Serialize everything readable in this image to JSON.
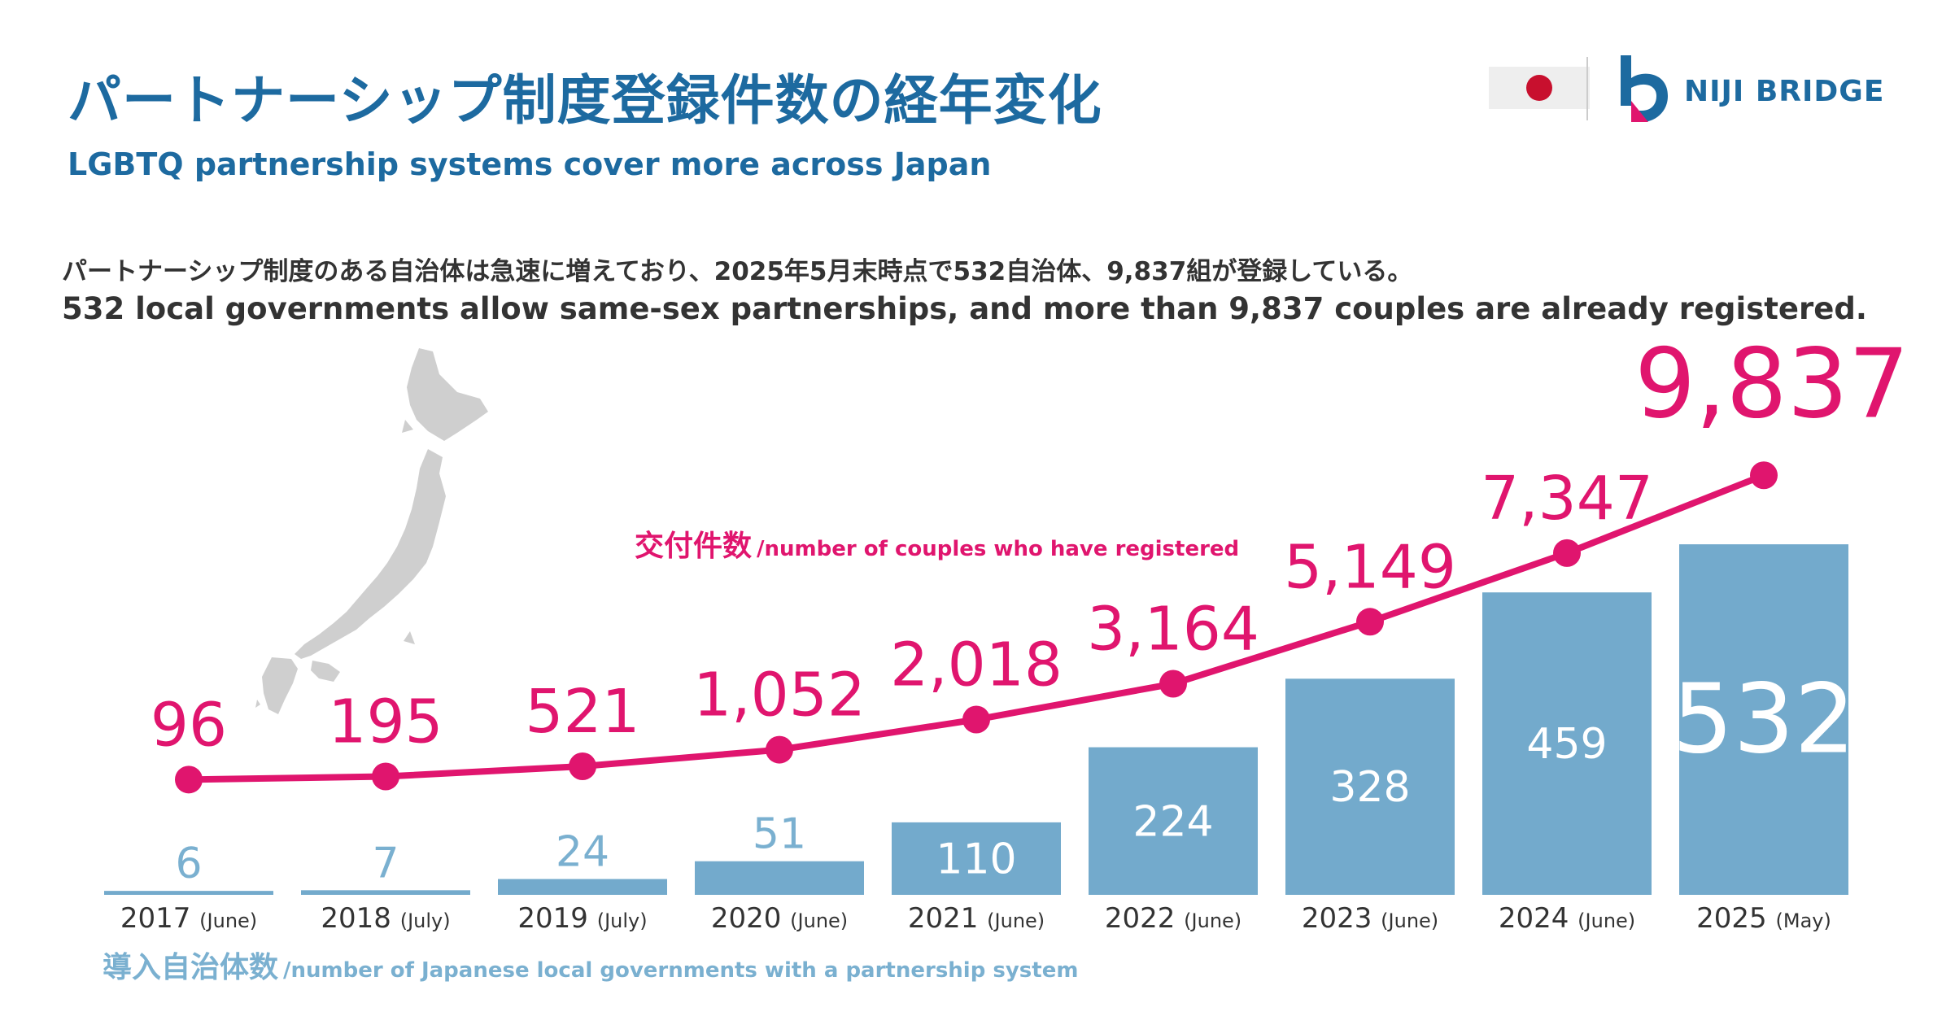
{
  "header": {
    "title_ja": "パートナーシップ制度登録件数の経年変化",
    "title_en": "LGBTQ partnership systems cover more across Japan",
    "lead_ja": "パートナーシップ制度のある自治体は急速に増えており、2025年5月末時点で532自治体、9,837組が登録している。",
    "lead_en": "532 local governments allow same-sex partnerships, and more than 9,837 couples are already registered."
  },
  "brand": {
    "logo_text": "NIJI BRIDGE"
  },
  "legend": {
    "couples_ja": "交付件数",
    "couples_en": "/number of couples who have registered",
    "govs_ja": "導入自治体数",
    "govs_en": "/number of Japanese local governments with a partnership system"
  },
  "colors": {
    "pink": "#e0156e",
    "bar": "#73aacc",
    "bar_light_text": "#7ab0d0",
    "title_blue": "#1d6aa0"
  },
  "chart_data": {
    "type": "bar",
    "categories": [
      {
        "year": "2017",
        "period": "(June)"
      },
      {
        "year": "2018",
        "period": "(July)"
      },
      {
        "year": "2019",
        "period": "(July)"
      },
      {
        "year": "2020",
        "period": "(June)"
      },
      {
        "year": "2021",
        "period": "(June)"
      },
      {
        "year": "2022",
        "period": "(June)"
      },
      {
        "year": "2023",
        "period": "(June)"
      },
      {
        "year": "2024",
        "period": "(June)"
      },
      {
        "year": "2025",
        "period": "(May)"
      }
    ],
    "series": [
      {
        "name": "導入自治体数",
        "type": "bar",
        "values": [
          6,
          7,
          24,
          51,
          110,
          224,
          328,
          459,
          532
        ],
        "labels": [
          "6",
          "7",
          "24",
          "51",
          "110",
          "224",
          "328",
          "459",
          "532"
        ]
      },
      {
        "name": "交付件数",
        "type": "line",
        "values": [
          96,
          195,
          521,
          1052,
          2018,
          3164,
          5149,
          7347,
          9837
        ],
        "labels": [
          "96",
          "195",
          "521",
          "1,052",
          "2,018",
          "3,164",
          "5,149",
          "7,347",
          "9,837"
        ]
      }
    ]
  }
}
